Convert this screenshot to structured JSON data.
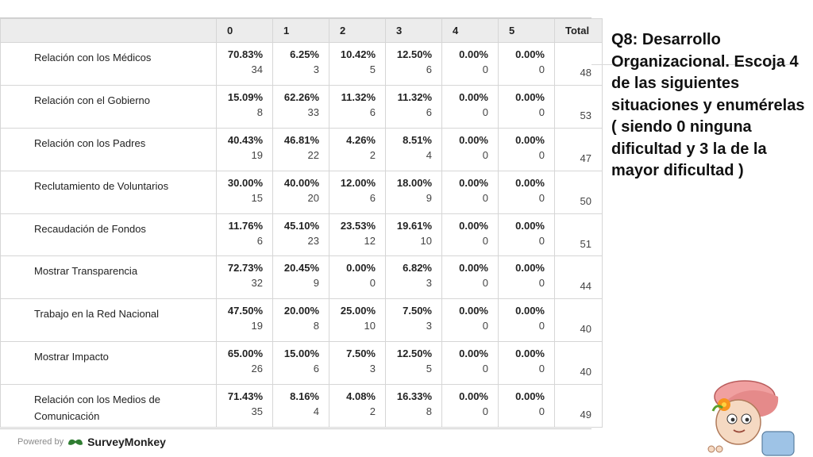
{
  "table": {
    "headers": [
      "0",
      "1",
      "2",
      "3",
      "4",
      "5",
      "Total"
    ],
    "rows": [
      {
        "label": "Relación con los Médicos",
        "cells": [
          {
            "pct": "70.83%",
            "n": "34"
          },
          {
            "pct": "6.25%",
            "n": "3"
          },
          {
            "pct": "10.42%",
            "n": "5"
          },
          {
            "pct": "12.50%",
            "n": "6"
          },
          {
            "pct": "0.00%",
            "n": "0"
          },
          {
            "pct": "0.00%",
            "n": "0"
          }
        ],
        "total": "48"
      },
      {
        "label": "Relación con el Gobierno",
        "cells": [
          {
            "pct": "15.09%",
            "n": "8"
          },
          {
            "pct": "62.26%",
            "n": "33"
          },
          {
            "pct": "11.32%",
            "n": "6"
          },
          {
            "pct": "11.32%",
            "n": "6"
          },
          {
            "pct": "0.00%",
            "n": "0"
          },
          {
            "pct": "0.00%",
            "n": "0"
          }
        ],
        "total": "53"
      },
      {
        "label": "Relación con los Padres",
        "cells": [
          {
            "pct": "40.43%",
            "n": "19"
          },
          {
            "pct": "46.81%",
            "n": "22"
          },
          {
            "pct": "4.26%",
            "n": "2"
          },
          {
            "pct": "8.51%",
            "n": "4"
          },
          {
            "pct": "0.00%",
            "n": "0"
          },
          {
            "pct": "0.00%",
            "n": "0"
          }
        ],
        "total": "47"
      },
      {
        "label": "Reclutamiento de Voluntarios",
        "cells": [
          {
            "pct": "30.00%",
            "n": "15"
          },
          {
            "pct": "40.00%",
            "n": "20"
          },
          {
            "pct": "12.00%",
            "n": "6"
          },
          {
            "pct": "18.00%",
            "n": "9"
          },
          {
            "pct": "0.00%",
            "n": "0"
          },
          {
            "pct": "0.00%",
            "n": "0"
          }
        ],
        "total": "50"
      },
      {
        "label": "Recaudación de Fondos",
        "cells": [
          {
            "pct": "11.76%",
            "n": "6"
          },
          {
            "pct": "45.10%",
            "n": "23"
          },
          {
            "pct": "23.53%",
            "n": "12"
          },
          {
            "pct": "19.61%",
            "n": "10"
          },
          {
            "pct": "0.00%",
            "n": "0"
          },
          {
            "pct": "0.00%",
            "n": "0"
          }
        ],
        "total": "51"
      },
      {
        "label": "Mostrar Transparencia",
        "cells": [
          {
            "pct": "72.73%",
            "n": "32"
          },
          {
            "pct": "20.45%",
            "n": "9"
          },
          {
            "pct": "0.00%",
            "n": "0"
          },
          {
            "pct": "6.82%",
            "n": "3"
          },
          {
            "pct": "0.00%",
            "n": "0"
          },
          {
            "pct": "0.00%",
            "n": "0"
          }
        ],
        "total": "44"
      },
      {
        "label": "Trabajo en la Red Nacional",
        "cells": [
          {
            "pct": "47.50%",
            "n": "19"
          },
          {
            "pct": "20.00%",
            "n": "8"
          },
          {
            "pct": "25.00%",
            "n": "10"
          },
          {
            "pct": "7.50%",
            "n": "3"
          },
          {
            "pct": "0.00%",
            "n": "0"
          },
          {
            "pct": "0.00%",
            "n": "0"
          }
        ],
        "total": "40"
      },
      {
        "label": "Mostrar Impacto",
        "cells": [
          {
            "pct": "65.00%",
            "n": "26"
          },
          {
            "pct": "15.00%",
            "n": "6"
          },
          {
            "pct": "7.50%",
            "n": "3"
          },
          {
            "pct": "12.50%",
            "n": "5"
          },
          {
            "pct": "0.00%",
            "n": "0"
          },
          {
            "pct": "0.00%",
            "n": "0"
          }
        ],
        "total": "40"
      },
      {
        "label": "Relación con los Medios de Comunicación",
        "cells": [
          {
            "pct": "71.43%",
            "n": "35"
          },
          {
            "pct": "8.16%",
            "n": "4"
          },
          {
            "pct": "4.08%",
            "n": "2"
          },
          {
            "pct": "16.33%",
            "n": "8"
          },
          {
            "pct": "0.00%",
            "n": "0"
          },
          {
            "pct": "0.00%",
            "n": "0"
          }
        ],
        "total": "49"
      }
    ]
  },
  "question": "Q8: Desarrollo Organizacional. Escoja 4 de las siguientes situaciones y enumérelas ( siendo 0 ninguna dificultad y 3 la de la mayor dificultad )",
  "footer": {
    "powered_by": "Powered by",
    "brand": "SurveyMonkey",
    "brand_color": "#2f7d32"
  },
  "icons": {
    "logo": "surveymonkey-logo-icon",
    "mascot": "cartoon-girl-mascot-icon"
  }
}
